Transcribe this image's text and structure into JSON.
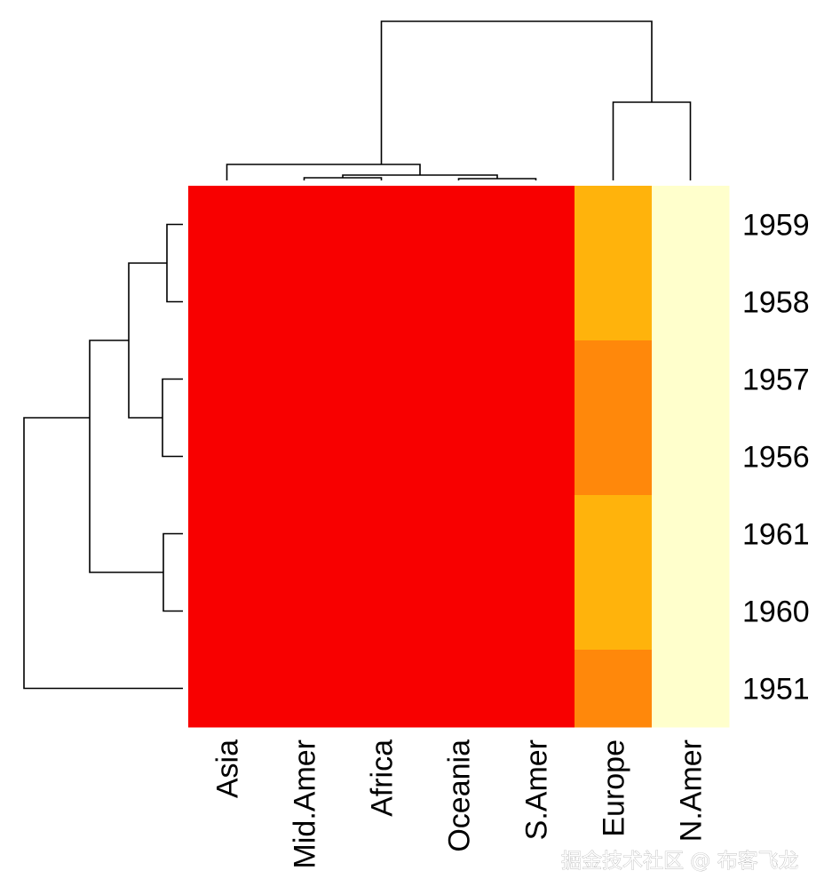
{
  "chart_data": {
    "type": "heatmap",
    "columns": [
      "Asia",
      "Mid.Amer",
      "Africa",
      "Oceania",
      "S.Amer",
      "Europe",
      "N.Amer"
    ],
    "rows": [
      "1959",
      "1958",
      "1957",
      "1956",
      "1961",
      "1960",
      "1951"
    ],
    "levels": [
      [
        1,
        1,
        1,
        1,
        1,
        2,
        4
      ],
      [
        1,
        1,
        1,
        1,
        1,
        2,
        4
      ],
      [
        1,
        1,
        1,
        1,
        1,
        3,
        4
      ],
      [
        1,
        1,
        1,
        1,
        1,
        3,
        4
      ],
      [
        1,
        1,
        1,
        1,
        1,
        2,
        4
      ],
      [
        1,
        1,
        1,
        1,
        1,
        2,
        4
      ],
      [
        1,
        1,
        1,
        1,
        1,
        3,
        4
      ]
    ],
    "palette": {
      "1": "#f80000",
      "2": "#ffb30c",
      "3": "#ff880b",
      "4": "#ffffcc"
    },
    "row_dendrogram": true,
    "column_dendrogram": true
  },
  "watermark": "掘金技术社区 @ 布客飞龙"
}
